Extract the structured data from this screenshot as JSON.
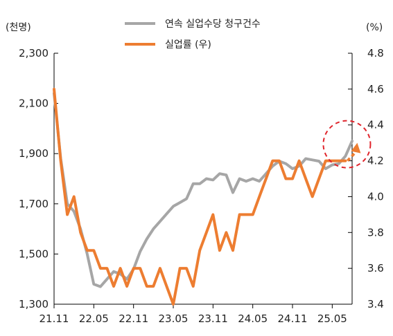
{
  "chart_data": {
    "type": "line",
    "left_unit": "(천명)",
    "right_unit": "(%)",
    "left_axis": {
      "min": 1300,
      "max": 2300,
      "ticks": [
        "1,300",
        "1,500",
        "1,700",
        "1,900",
        "2,100",
        "2,300"
      ],
      "tick_values": [
        1300,
        1500,
        1700,
        1900,
        2100,
        2300
      ]
    },
    "right_axis": {
      "min": 3.4,
      "max": 4.8,
      "ticks": [
        "3.4",
        "3.6",
        "3.8",
        "4.0",
        "4.2",
        "4.4",
        "4.6",
        "4.8"
      ],
      "tick_values": [
        3.4,
        3.6,
        3.8,
        4.0,
        4.2,
        4.4,
        4.6,
        4.8
      ]
    },
    "x_labels": [
      "21.11",
      "22.05",
      "22.11",
      "23.05",
      "23.11",
      "24.05",
      "24.11",
      "25.05"
    ],
    "x_label_index": [
      0,
      6,
      12,
      18,
      24,
      30,
      36,
      42
    ],
    "legend_position": "top-center",
    "grid": false,
    "series": [
      {
        "name": "연속 실업수당 청구건수",
        "axis": "left",
        "color": "#a6a6a6",
        "values": [
          2140,
          1880,
          1700,
          1670,
          1600,
          1500,
          1380,
          1370,
          1400,
          1430,
          1420,
          1400,
          1440,
          1510,
          1560,
          1600,
          1630,
          1660,
          1690,
          1705,
          1720,
          1780,
          1780,
          1800,
          1795,
          1820,
          1815,
          1745,
          1800,
          1790,
          1800,
          1790,
          1820,
          1850,
          1870,
          1860,
          1840,
          1850,
          1880,
          1875,
          1870,
          1840,
          1855,
          1860,
          1890,
          1950
        ]
      },
      {
        "name": "실업률 (우)",
        "axis": "right",
        "color": "#ed7d31",
        "values": [
          4.6,
          4.2,
          3.9,
          4.0,
          3.8,
          3.7,
          3.7,
          3.6,
          3.6,
          3.5,
          3.6,
          3.5,
          3.6,
          3.6,
          3.5,
          3.5,
          3.6,
          3.5,
          3.4,
          3.6,
          3.6,
          3.5,
          3.7,
          3.8,
          3.9,
          3.7,
          3.8,
          3.7,
          3.9,
          3.9,
          3.9,
          4.0,
          4.1,
          4.2,
          4.2,
          4.1,
          4.1,
          4.2,
          4.1,
          4.0,
          4.1,
          4.2,
          4.2,
          4.2,
          4.2
        ],
        "projection_to": 4.3
      }
    ]
  }
}
